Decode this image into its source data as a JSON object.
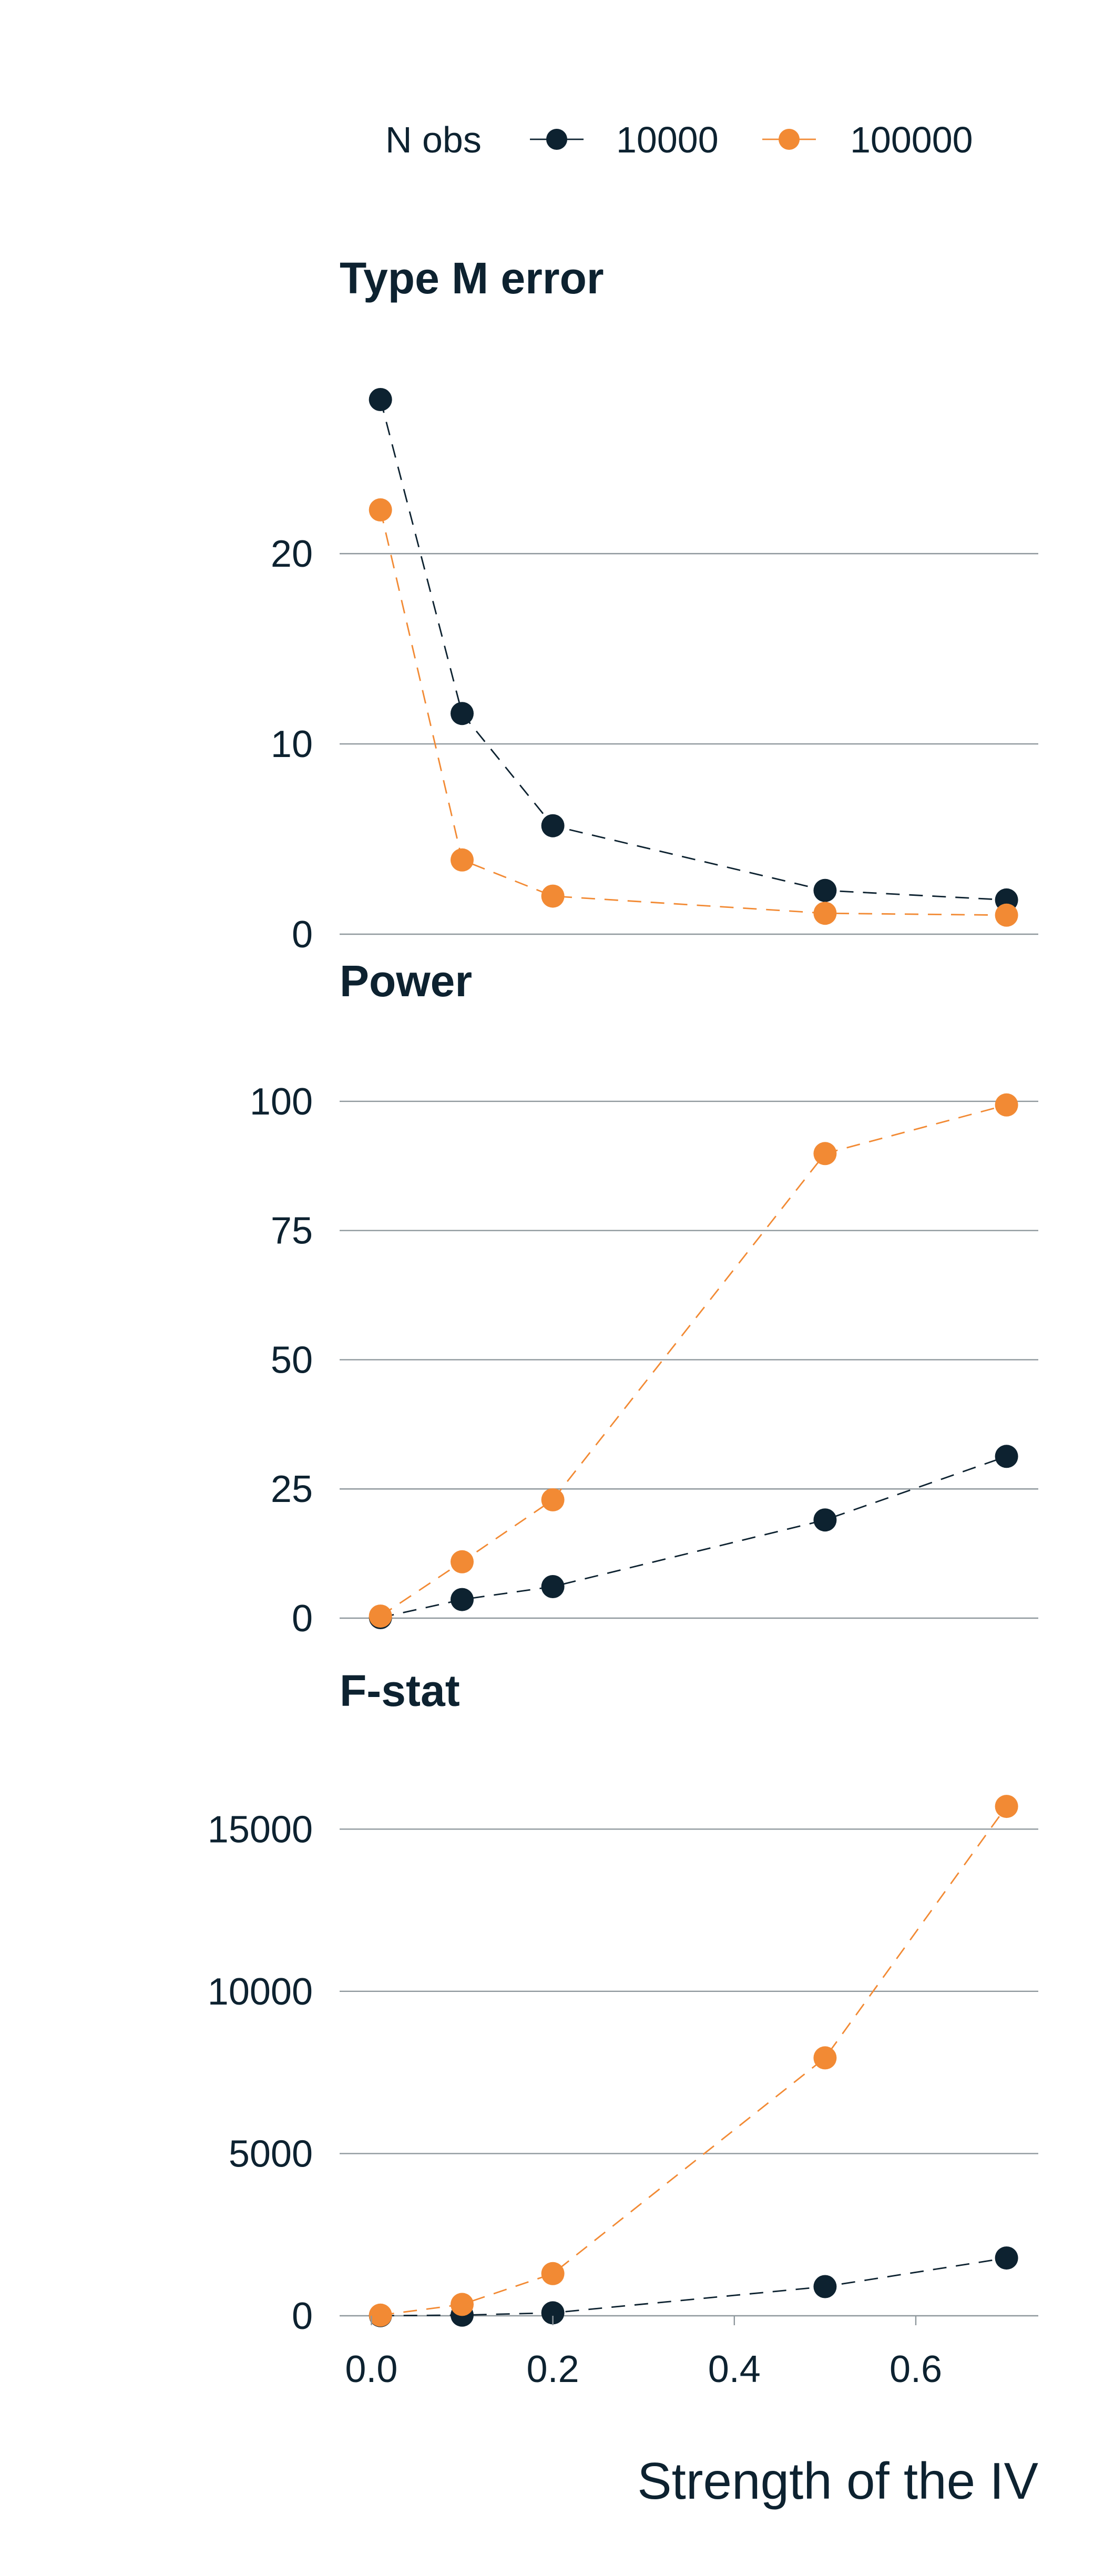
{
  "chart_data": {
    "type": "line",
    "legend": {
      "title": "N obs",
      "position": "top-right",
      "entries": [
        {
          "label": "10000",
          "color": "#0d2230"
        },
        {
          "label": "100000",
          "color": "#f28a34"
        }
      ]
    },
    "x_label": "Strength of the IV",
    "x_ticks": [
      0.0,
      0.2,
      0.4,
      0.6
    ],
    "x_tick_labels": [
      "0.0",
      "0.2",
      "0.4",
      "0.6"
    ],
    "x_range": [
      -0.035,
      0.735
    ],
    "x_values": [
      0.01,
      0.1,
      0.2,
      0.5,
      0.7
    ],
    "grid": true,
    "panels": [
      {
        "title": "Type M error",
        "y_range": [
          0,
          31
        ],
        "y_ticks": [
          0,
          10,
          20
        ],
        "y_tick_labels": [
          "0",
          "10",
          "20"
        ],
        "series": [
          {
            "name": "10000",
            "values": [
              28.1,
              11.6,
              5.7,
              2.3,
              1.8
            ]
          },
          {
            "name": "100000",
            "values": [
              22.3,
              3.9,
              2.0,
              1.1,
              1.0
            ]
          }
        ]
      },
      {
        "title": "Power",
        "y_range": [
          0,
          112
        ],
        "y_ticks": [
          0,
          25,
          50,
          75,
          100
        ],
        "y_tick_labels": [
          "0",
          "25",
          "50",
          "75",
          "100"
        ],
        "series": [
          {
            "name": "10000",
            "values": [
              0.1,
              3.6,
              6.1,
              19.0,
              31.3
            ]
          },
          {
            "name": "100000",
            "values": [
              0.4,
              10.9,
              22.9,
              89.9,
              99.3
            ]
          }
        ]
      },
      {
        "title": "F-stat",
        "y_range": [
          0,
          17500
        ],
        "y_ticks": [
          0,
          5000,
          10000,
          15000
        ],
        "y_tick_labels": [
          "0",
          "5000",
          "10000",
          "15000"
        ],
        "series": [
          {
            "name": "10000",
            "values": [
              4,
              20,
              90,
              900,
              1780
            ]
          },
          {
            "name": "100000",
            "values": [
              20,
              350,
              1300,
              7950,
              15700
            ]
          }
        ]
      }
    ]
  }
}
